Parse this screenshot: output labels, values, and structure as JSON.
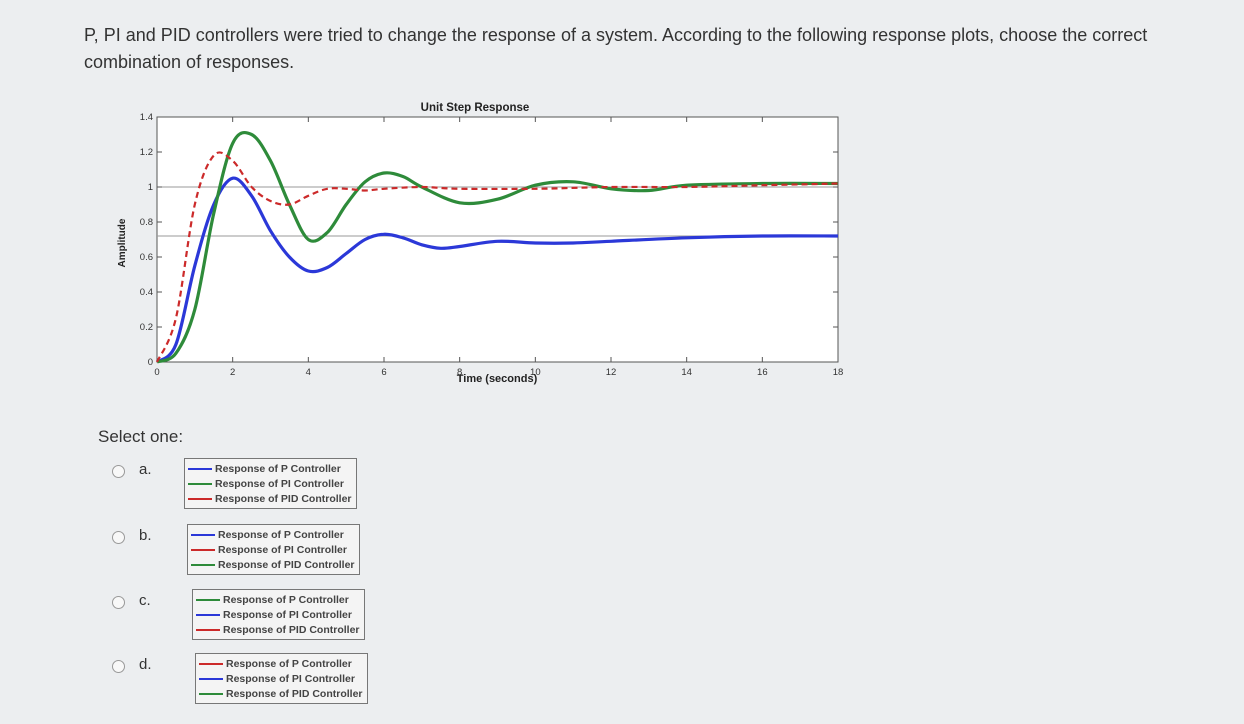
{
  "question": {
    "text": "P, PI and PID controllers were tried to change the response of a system. According to the following response plots, choose the correct combination of responses."
  },
  "chart_data": {
    "type": "line",
    "title": "Unit Step Response",
    "xlabel": "Time (seconds)",
    "ylabel": "Amplitude",
    "xlim": [
      0,
      18
    ],
    "ylim": [
      0,
      1.4
    ],
    "xticks": [
      0,
      2,
      4,
      6,
      8,
      10,
      12,
      14,
      16,
      18
    ],
    "yticks": [
      0,
      0.2,
      0.4,
      0.6,
      0.8,
      1,
      1.2,
      1.4
    ],
    "grid": false,
    "series": [
      {
        "color": "#2b38d8",
        "style": "solid",
        "x": [
          0,
          0.5,
          1.0,
          1.5,
          2.0,
          2.5,
          3.0,
          3.5,
          4.0,
          4.5,
          5.0,
          5.5,
          6.0,
          6.5,
          7.0,
          7.5,
          8.0,
          9.0,
          10.0,
          11.0,
          12.0,
          14.0,
          16.0,
          18.0
        ],
        "y": [
          0,
          0.1,
          0.55,
          0.9,
          1.05,
          0.95,
          0.75,
          0.6,
          0.52,
          0.54,
          0.62,
          0.7,
          0.73,
          0.71,
          0.67,
          0.65,
          0.66,
          0.69,
          0.68,
          0.68,
          0.69,
          0.71,
          0.72,
          0.72
        ]
      },
      {
        "color": "#2e8b3a",
        "style": "solid",
        "x": [
          0,
          0.5,
          1.0,
          1.5,
          2.0,
          2.5,
          3.0,
          3.5,
          4.0,
          4.5,
          5.0,
          5.5,
          6.0,
          6.5,
          7.0,
          8.0,
          9.0,
          10.0,
          11.0,
          12.0,
          13.0,
          14.0,
          16.0,
          18.0
        ],
        "y": [
          0,
          0.05,
          0.3,
          0.85,
          1.25,
          1.3,
          1.15,
          0.9,
          0.7,
          0.74,
          0.9,
          1.03,
          1.08,
          1.06,
          1.0,
          0.91,
          0.93,
          1.01,
          1.03,
          0.99,
          0.98,
          1.01,
          1.02,
          1.02
        ]
      },
      {
        "color": "#cc2a2a",
        "style": "dashed",
        "x": [
          0,
          0.5,
          1.0,
          1.5,
          2.0,
          2.5,
          3.0,
          3.5,
          4.0,
          4.5,
          5.0,
          5.5,
          6.0,
          7.0,
          8.0,
          10.0,
          12.0,
          14.0,
          16.0,
          18.0
        ],
        "y": [
          0,
          0.25,
          0.9,
          1.18,
          1.15,
          1.0,
          0.92,
          0.9,
          0.95,
          0.99,
          0.99,
          0.98,
          0.99,
          1.0,
          0.99,
          0.99,
          1.0,
          1.0,
          1.01,
          1.02
        ]
      }
    ]
  },
  "select_label": "Select one:",
  "options": [
    {
      "letter": "a.",
      "entries": [
        {
          "label": "Response of P Controller",
          "color": "#2b38d8"
        },
        {
          "label": "Response of PI Controller",
          "color": "#2e8b3a"
        },
        {
          "label": "Response of PID Controller",
          "color": "#cc2a2a"
        }
      ]
    },
    {
      "letter": "b.",
      "entries": [
        {
          "label": "Response of P Controller",
          "color": "#2b38d8"
        },
        {
          "label": "Response of PI Controller",
          "color": "#cc2a2a"
        },
        {
          "label": "Response of PID Controller",
          "color": "#2e8b3a"
        }
      ]
    },
    {
      "letter": "c.",
      "entries": [
        {
          "label": "Response of P Controller",
          "color": "#2e8b3a"
        },
        {
          "label": "Response of PI Controller",
          "color": "#2b38d8"
        },
        {
          "label": "Response of PID Controller",
          "color": "#cc2a2a"
        }
      ]
    },
    {
      "letter": "d.",
      "entries": [
        {
          "label": "Response of P Controller",
          "color": "#cc2a2a"
        },
        {
          "label": "Response of PI Controller",
          "color": "#2b38d8"
        },
        {
          "label": "Response of PID Controller",
          "color": "#2e8b3a"
        }
      ]
    }
  ]
}
